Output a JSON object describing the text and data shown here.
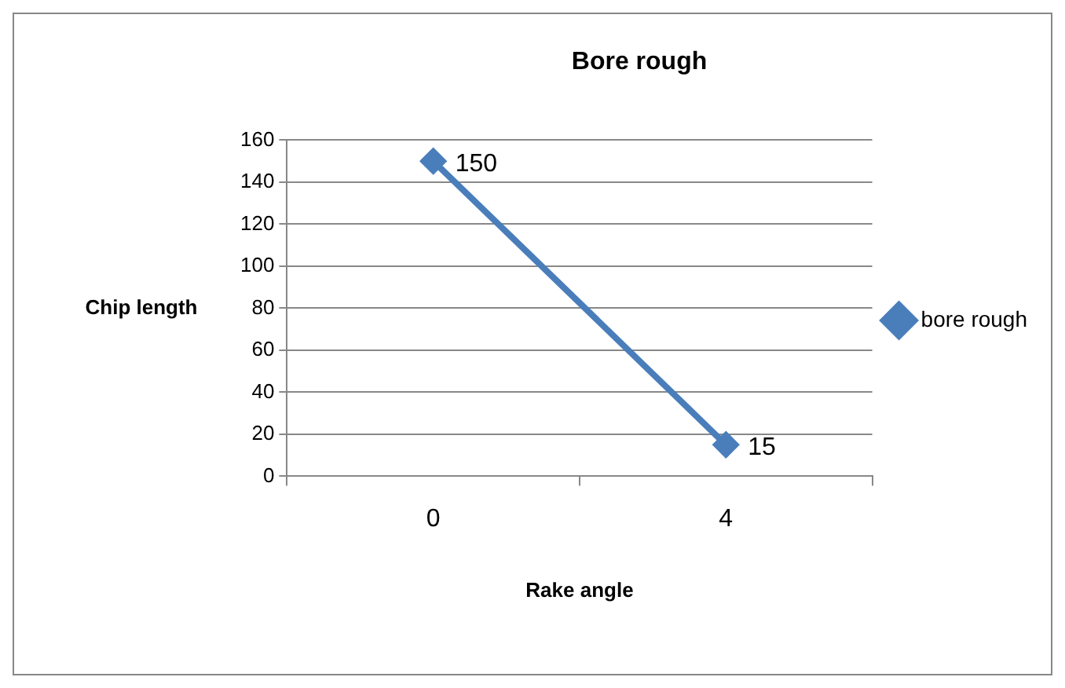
{
  "chart_data": {
    "type": "line",
    "title": "Bore rough",
    "xlabel": "Rake angle",
    "ylabel": "Chip length",
    "categories": [
      "0",
      "4"
    ],
    "series": [
      {
        "name": "bore rough",
        "color": "#4a7ebb",
        "values": [
          150,
          15
        ]
      }
    ],
    "ylim": [
      0,
      160
    ],
    "yticks": [
      0,
      20,
      40,
      60,
      80,
      100,
      120,
      140,
      160
    ],
    "grid": "y",
    "legend": "right",
    "marker": "diamond",
    "data_labels": true
  }
}
